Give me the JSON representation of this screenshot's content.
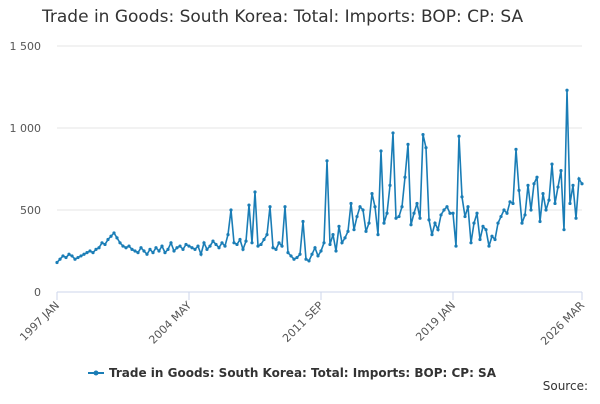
{
  "chart_data": {
    "type": "line",
    "title": "Trade in Goods: South Korea: Total: Imports: BOP: CP: SA",
    "source": "Source:",
    "x": [
      "1997-01",
      "1997-03",
      "1997-05",
      "1997-07",
      "1997-09",
      "1997-11",
      "1998-01",
      "1998-03",
      "1998-05",
      "1998-07",
      "1998-09",
      "1998-11",
      "1999-01",
      "1999-03",
      "1999-05",
      "1999-07",
      "1999-09",
      "1999-11",
      "2000-01",
      "2000-03",
      "2000-05",
      "2000-07",
      "2000-09",
      "2000-11",
      "2001-01",
      "2001-03",
      "2001-05",
      "2001-07",
      "2001-09",
      "2001-11",
      "2002-01",
      "2002-03",
      "2002-05",
      "2002-07",
      "2002-09",
      "2002-11",
      "2003-01",
      "2003-03",
      "2003-05",
      "2003-07",
      "2003-09",
      "2003-11",
      "2004-01",
      "2004-03",
      "2004-05",
      "2004-07",
      "2004-09",
      "2004-11",
      "2005-01",
      "2005-03",
      "2005-05",
      "2005-07",
      "2005-09",
      "2005-11",
      "2006-01",
      "2006-03",
      "2006-05",
      "2006-07",
      "2006-09",
      "2006-11",
      "2007-01",
      "2007-03",
      "2007-05",
      "2007-07",
      "2007-09",
      "2007-11",
      "2008-01",
      "2008-03",
      "2008-05",
      "2008-07",
      "2008-09",
      "2008-11",
      "2009-01",
      "2009-03",
      "2009-05",
      "2009-07",
      "2009-09",
      "2009-11",
      "2010-01",
      "2010-03",
      "2010-05",
      "2010-07",
      "2010-09",
      "2010-11",
      "2011-01",
      "2011-03",
      "2011-05",
      "2011-07",
      "2011-09",
      "2011-11",
      "2012-01",
      "2012-03",
      "2012-05",
      "2012-07",
      "2012-09",
      "2012-11",
      "2013-01",
      "2013-03",
      "2013-05",
      "2013-07",
      "2013-09",
      "2013-11",
      "2014-01",
      "2014-03",
      "2014-05",
      "2014-07",
      "2014-09",
      "2014-11",
      "2015-01",
      "2015-03",
      "2015-05",
      "2015-07",
      "2015-09",
      "2015-11",
      "2016-01",
      "2016-03",
      "2016-05",
      "2016-07",
      "2016-09",
      "2016-11",
      "2017-01",
      "2017-03",
      "2017-05",
      "2017-07",
      "2017-09",
      "2017-11",
      "2018-01",
      "2018-03",
      "2018-05",
      "2018-07",
      "2018-09",
      "2018-11",
      "2019-01",
      "2019-03",
      "2019-05",
      "2019-07",
      "2019-09",
      "2019-11",
      "2020-01",
      "2020-03",
      "2020-05",
      "2020-07",
      "2020-09",
      "2020-11",
      "2021-01",
      "2021-03",
      "2021-05",
      "2021-07",
      "2021-09",
      "2021-11",
      "2022-01",
      "2022-03",
      "2022-05",
      "2022-07",
      "2022-09",
      "2022-11",
      "2023-01",
      "2023-03",
      "2023-05",
      "2023-07",
      "2023-09",
      "2023-11",
      "2024-01",
      "2024-03",
      "2024-05",
      "2024-07",
      "2024-09",
      "2024-11",
      "2025-01",
      "2025-03",
      "2025-05",
      "2025-07",
      "2025-09",
      "2025-11",
      "2026-01",
      "2026-03"
    ],
    "series": [
      {
        "name": "Trade in Goods: South Korea: Total: Imports: BOP: CP: SA",
        "color": "#1a7db6",
        "values": [
          180,
          200,
          220,
          210,
          230,
          220,
          200,
          210,
          220,
          230,
          240,
          250,
          240,
          260,
          270,
          300,
          290,
          320,
          340,
          360,
          330,
          300,
          280,
          270,
          280,
          260,
          250,
          240,
          270,
          250,
          230,
          260,
          240,
          270,
          250,
          280,
          240,
          260,
          300,
          250,
          270,
          280,
          260,
          290,
          280,
          270,
          260,
          280,
          230,
          300,
          260,
          280,
          310,
          290,
          270,
          300,
          280,
          350,
          500,
          300,
          290,
          320,
          260,
          310,
          530,
          300,
          610,
          280,
          290,
          320,
          350,
          520,
          270,
          260,
          300,
          280,
          520,
          240,
          220,
          200,
          210,
          230,
          430,
          200,
          190,
          230,
          270,
          220,
          250,
          300,
          800,
          290,
          350,
          250,
          400,
          300,
          330,
          370,
          540,
          380,
          460,
          520,
          500,
          370,
          420,
          600,
          520,
          350,
          860,
          420,
          480,
          650,
          970,
          450,
          460,
          520,
          700,
          900,
          410,
          480,
          540,
          450,
          960,
          880,
          440,
          350,
          420,
          380,
          470,
          500,
          520,
          480,
          480,
          280,
          950,
          580,
          460,
          520,
          300,
          420,
          480,
          320,
          400,
          380,
          280,
          340,
          320,
          420,
          460,
          500,
          480,
          550,
          540,
          870,
          620,
          420,
          470,
          650,
          500,
          660,
          700,
          430,
          600,
          500,
          560,
          780,
          540,
          640,
          740,
          380,
          1230,
          540,
          650,
          450,
          690,
          660
        ]
      }
    ],
    "ylim": [
      0,
      1500
    ],
    "yticks": [
      0,
      500,
      {
        "value": 1000,
        "label": "1 000"
      },
      {
        "value": 1500,
        "label": "1 500"
      }
    ],
    "xlim": [
      "1997-01",
      "2026-03"
    ],
    "xticks": [
      {
        "value": "1997-01",
        "label": "1997 JAN"
      },
      {
        "value": "2004-05",
        "label": "2004 MAY"
      },
      {
        "value": "2011-09",
        "label": "2011 SEP"
      },
      {
        "value": "2019-01",
        "label": "2019 JAN"
      },
      {
        "value": "2026-03",
        "label": "2026 MAR"
      }
    ],
    "grid": true
  }
}
